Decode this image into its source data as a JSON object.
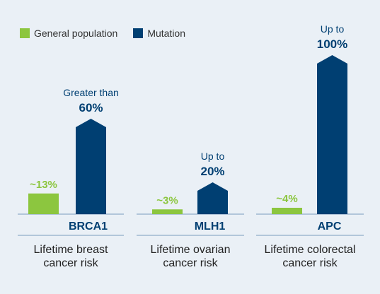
{
  "colors": {
    "general_population": "#8cc63f",
    "mutation": "#003f72",
    "axis": "#7a9bbd",
    "text_dark": "#222222",
    "background": "#eaf0f6"
  },
  "legend": {
    "general_label": "General population",
    "mutation_label": "Mutation"
  },
  "chart_data": {
    "type": "bar",
    "title": "",
    "xlabel": "",
    "ylabel": "",
    "ylim": [
      0,
      100
    ],
    "grid": false,
    "legend_position": "top-left",
    "series": [
      {
        "name": "General population",
        "values": [
          13,
          3,
          4
        ]
      },
      {
        "name": "Mutation",
        "values": [
          60,
          20,
          100
        ]
      }
    ],
    "groups": [
      {
        "gene": "BRCA1",
        "category_label": [
          "Lifetime breast",
          "cancer risk"
        ],
        "general_label": "~13%",
        "mutation_label_prefix": "Greater than",
        "mutation_label_value": "60%"
      },
      {
        "gene": "MLH1",
        "category_label": [
          "Lifetime ovarian",
          "cancer risk"
        ],
        "general_label": "~3%",
        "mutation_label_prefix": "Up to",
        "mutation_label_value": "20%"
      },
      {
        "gene": "APC",
        "category_label": [
          "Lifetime colorectal",
          "cancer risk"
        ],
        "general_label": "~4%",
        "mutation_label_prefix": "Up to",
        "mutation_label_value": "100%"
      }
    ]
  }
}
